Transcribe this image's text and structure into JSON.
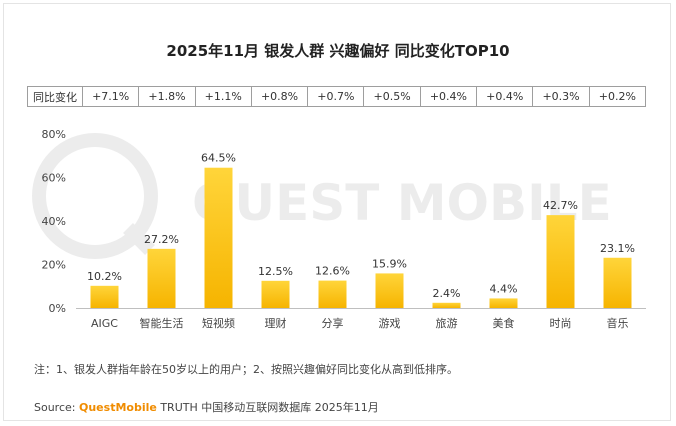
{
  "title": "2025年11月 银发人群 兴趣偏好 同比变化TOP10",
  "yoy_row": {
    "header": "同比变化",
    "values": [
      "+7.1%",
      "+1.8%",
      "+1.1%",
      "+0.8%",
      "+0.7%",
      "+0.5%",
      "+0.4%",
      "+0.4%",
      "+0.3%",
      "+0.2%"
    ]
  },
  "watermark": "QUEST MOBILE",
  "note": "注：1、银发人群指年龄在50岁以上的用户；2、按照兴趣偏好同比变化从高到低排序。",
  "source": {
    "label": "Source:",
    "brand": "QuestMobile",
    "rest": "TRUTH 中国移动互联网数据库 2025年11月"
  },
  "colors": {
    "bar_top": "#FFD53A",
    "bar_bottom": "#F6B400",
    "brand": "#F08C00"
  },
  "chart_data": {
    "type": "bar",
    "title": "2025年11月 银发人群 兴趣偏好 同比变化TOP10",
    "categories": [
      "AIGC",
      "智能生活",
      "短视频",
      "理财",
      "分享",
      "游戏",
      "旅游",
      "美食",
      "时尚",
      "音乐"
    ],
    "values": [
      10.2,
      27.2,
      64.5,
      12.5,
      12.6,
      15.9,
      2.4,
      4.4,
      42.7,
      23.1
    ],
    "value_labels": [
      "10.2%",
      "27.2%",
      "64.5%",
      "12.5%",
      "12.6%",
      "15.9%",
      "2.4%",
      "4.4%",
      "42.7%",
      "23.1%"
    ],
    "yticks": [
      0,
      20,
      40,
      60,
      80
    ],
    "ytick_labels": [
      "0%",
      "20%",
      "40%",
      "60%",
      "80%"
    ],
    "ylim": [
      0,
      80
    ],
    "xlabel": "",
    "ylabel": "",
    "grid": false
  }
}
